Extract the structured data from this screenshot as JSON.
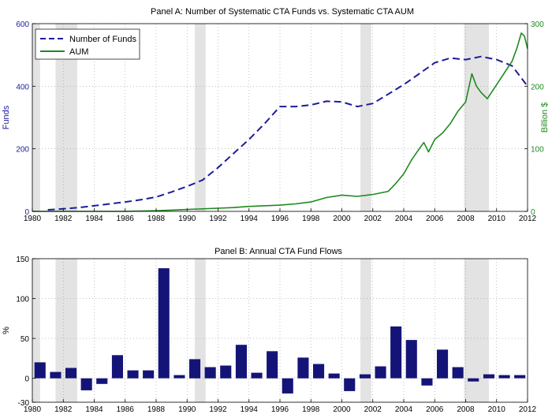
{
  "colors": {
    "funds": "#1c1c9c",
    "aum": "#1e8a1e",
    "bars": "#141478",
    "recession": "#e3e3e3",
    "grid": "#9a9a9a",
    "axis": "#000000"
  },
  "recessions": [
    [
      1980.0,
      1980.5
    ],
    [
      1981.5,
      1982.9
    ],
    [
      1990.5,
      1991.2
    ],
    [
      2001.2,
      2001.9
    ],
    [
      2007.9,
      2009.5
    ]
  ],
  "chart_data": [
    {
      "type": "line",
      "title": "Panel A: Number of Systematic CTA Funds vs. Systematic CTA AUM",
      "ylabel_left": "Funds",
      "ylabel_right": "Billion $",
      "xlim": [
        1980,
        2012
      ],
      "ylim_left": [
        0,
        600
      ],
      "ylim_right": [
        0,
        300
      ],
      "x_ticks": [
        "1980",
        "1982",
        "1984",
        "1986",
        "1988",
        "1990",
        "1992",
        "1994",
        "1996",
        "1998",
        "2000",
        "2002",
        "2004",
        "2006",
        "2008",
        "2010",
        "2012"
      ],
      "y_ticks_left": [
        "0",
        "200",
        "400",
        "600"
      ],
      "y_ticks_right": [
        "0",
        "100",
        "200",
        "300"
      ],
      "legend": [
        "Number of Funds",
        "AUM"
      ],
      "legend_position": "top-left",
      "series": [
        {
          "name": "Number of Funds",
          "axis": "left",
          "style": "dashed",
          "x": [
            1981,
            1982,
            1983,
            1984,
            1985,
            1986,
            1987,
            1988,
            1989,
            1990,
            1991,
            1992,
            1993,
            1994,
            1995,
            1996,
            1997,
            1998,
            1999,
            2000,
            2001,
            2002,
            2003,
            2004,
            2005,
            2006,
            2007,
            2008,
            2009,
            2010,
            2011,
            2012
          ],
          "values": [
            5,
            8,
            12,
            18,
            24,
            30,
            37,
            46,
            62,
            80,
            100,
            140,
            185,
            230,
            280,
            335,
            335,
            340,
            352,
            350,
            335,
            345,
            375,
            405,
            440,
            475,
            490,
            485,
            495,
            485,
            465,
            400
          ]
        },
        {
          "name": "AUM",
          "axis": "right",
          "style": "solid",
          "x": [
            1980,
            1982,
            1984,
            1986,
            1988,
            1989,
            1990,
            1991,
            1992,
            1993,
            1994,
            1995,
            1996,
            1997,
            1998,
            1999,
            2000,
            2001,
            2002,
            2003,
            2003.5,
            2004,
            2004.5,
            2005,
            2005.3,
            2005.6,
            2006,
            2006.5,
            2007,
            2007.5,
            2008,
            2008.4,
            2008.7,
            2009,
            2009.4,
            2009.8,
            2010.2,
            2010.6,
            2011,
            2011.3,
            2011.6,
            2011.8,
            2012
          ],
          "values": [
            0,
            0,
            0,
            0,
            1,
            2,
            3,
            4,
            5,
            6,
            8,
            9,
            10,
            12,
            15,
            22,
            26,
            24,
            27,
            32,
            45,
            60,
            82,
            100,
            110,
            95,
            115,
            125,
            140,
            160,
            175,
            220,
            200,
            190,
            180,
            195,
            210,
            225,
            240,
            260,
            285,
            280,
            260
          ]
        }
      ]
    },
    {
      "type": "bar",
      "title": "Panel B: Annual CTA Fund Flows",
      "ylabel": "%",
      "xlim": [
        1980,
        2012
      ],
      "ylim": [
        -30,
        150
      ],
      "x_ticks": [
        "1980",
        "1982",
        "1984",
        "1986",
        "1988",
        "1990",
        "1992",
        "1994",
        "1996",
        "1998",
        "2000",
        "2002",
        "2004",
        "2006",
        "2008",
        "2010",
        "2012"
      ],
      "y_ticks": [
        "-30",
        "0",
        "50",
        "100",
        "150"
      ],
      "categories": [
        1980.5,
        1981.5,
        1982.5,
        1983.5,
        1984.5,
        1985.5,
        1986.5,
        1987.5,
        1988.5,
        1989.5,
        1990.5,
        1991.5,
        1992.5,
        1993.5,
        1994.5,
        1995.5,
        1996.5,
        1997.5,
        1998.5,
        1999.5,
        2000.5,
        2001.5,
        2002.5,
        2003.5,
        2004.5,
        2005.5,
        2006.5,
        2007.5,
        2008.5,
        2009.5,
        2010.5,
        2011.5
      ],
      "values": [
        20,
        8,
        13,
        -15,
        -7,
        29,
        10,
        10,
        138,
        4,
        24,
        14,
        16,
        42,
        7,
        34,
        -19,
        26,
        18,
        6,
        -16,
        5,
        15,
        65,
        48,
        -9,
        36,
        14,
        -4,
        5,
        4,
        4
      ]
    }
  ]
}
